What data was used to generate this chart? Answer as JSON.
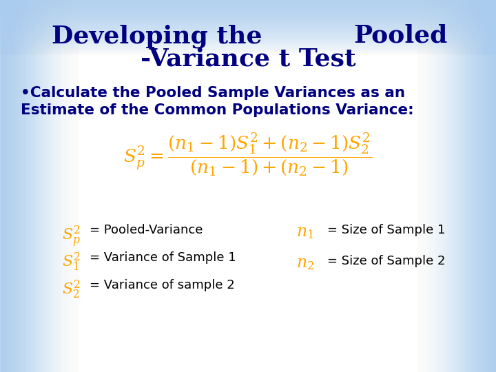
{
  "title_left": "Developing the",
  "title_right": "Pooled",
  "title_line2": "-Variance t Test",
  "title_color": "#000080",
  "title_fontsize": 26,
  "bullet_text_line1": "•Calculate the Pooled Sample Variances as an",
  "bullet_text_line2": "Estimate of the Common Populations Variance:",
  "bullet_color": "#000080",
  "bullet_fontsize": 15.5,
  "formula_color": "#FFA500",
  "bg_color": "#FFFFFF",
  "fig_width": 7.2,
  "fig_height": 5.4,
  "legend_fs": 13,
  "formula_fs": 19
}
